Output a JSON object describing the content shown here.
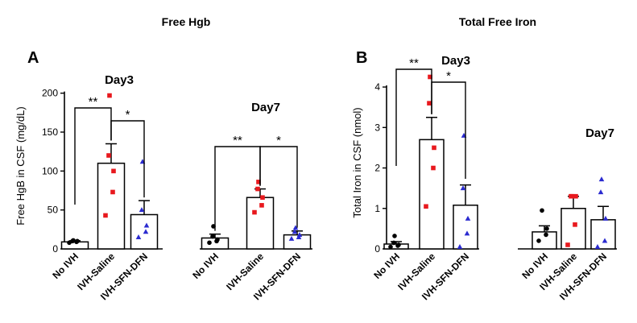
{
  "chart_data": [
    {
      "type": "bar",
      "panel": "A",
      "title": "Free Hgb",
      "ylabel": "Free HgB in CSF (mg/dL)",
      "ylim": [
        0,
        210
      ],
      "yticks": [
        0,
        50,
        100,
        150,
        200
      ],
      "groups": [
        {
          "label": "Day3",
          "categories": [
            "No IVH",
            "IVH-Saline",
            "IVH-SFN-DFN"
          ],
          "means": [
            9,
            110,
            44
          ],
          "errors": [
            1.5,
            25,
            18
          ],
          "points": [
            [
              8,
              9,
              10,
              10,
              11
            ],
            [
              43,
              73,
              100,
              120,
              197
            ],
            [
              15,
              22,
              30,
              50,
              112
            ]
          ],
          "significance": [
            {
              "from": 0,
              "to": 1,
              "label": "**"
            },
            {
              "from": 1,
              "to": 2,
              "label": "*"
            }
          ]
        },
        {
          "label": "Day7",
          "categories": [
            "No IVH",
            "IVH-Saline",
            "IVH-SFN-DFN"
          ],
          "means": [
            14,
            66,
            18
          ],
          "errors": [
            5,
            11,
            5
          ],
          "points": [
            [
              8,
              10,
              12,
              16,
              29
            ],
            [
              47,
              56,
              66,
              77,
              86
            ],
            [
              13,
              15,
              18,
              22,
              27
            ]
          ],
          "significance": [
            {
              "from": 0,
              "to": 1,
              "label": "**"
            },
            {
              "from": 1,
              "to": 2,
              "label": "*"
            }
          ]
        }
      ]
    },
    {
      "type": "bar",
      "panel": "B",
      "title": "Total Free Iron",
      "ylabel": "Total Iron in CSF (nmol)",
      "ylim": [
        0,
        4.2
      ],
      "yticks": [
        0,
        1,
        2,
        3,
        4
      ],
      "groups": [
        {
          "label": "Day3",
          "categories": [
            "No IVH",
            "IVH-Saline",
            "IVH-SFN-DFN"
          ],
          "means": [
            0.12,
            2.7,
            1.08
          ],
          "errors": [
            0.06,
            0.55,
            0.5
          ],
          "points": [
            [
              0.05,
              0.08,
              0.1,
              0.15,
              0.32
            ],
            [
              1.05,
              2.0,
              2.5,
              3.6,
              4.25
            ],
            [
              0.05,
              0.38,
              0.75,
              1.5,
              2.8
            ]
          ],
          "significance": [
            {
              "from": 0,
              "to": 1,
              "label": "**"
            },
            {
              "from": 1,
              "to": 2,
              "label": "*"
            }
          ]
        },
        {
          "label": "Day7",
          "categories": [
            "No IVH",
            "IVH-Saline",
            "IVH-SFN-DFN"
          ],
          "means": [
            0.42,
            1.0,
            0.72
          ],
          "errors": [
            0.15,
            0.3,
            0.33
          ],
          "points": [
            [
              0.2,
              0.35,
              0.5,
              0.95
            ],
            [
              0.1,
              0.6,
              1.3,
              1.3,
              1.3
            ],
            [
              0.05,
              0.2,
              0.75,
              1.4,
              1.72
            ]
          ],
          "significance": []
        }
      ]
    }
  ],
  "colors": {
    "no_ivh": "#000000",
    "ivh_saline": "#e8191e",
    "ivh_sfn_dfn": "#2b2bd0",
    "bar_fill": "#ffffff",
    "axis": "#000000"
  }
}
